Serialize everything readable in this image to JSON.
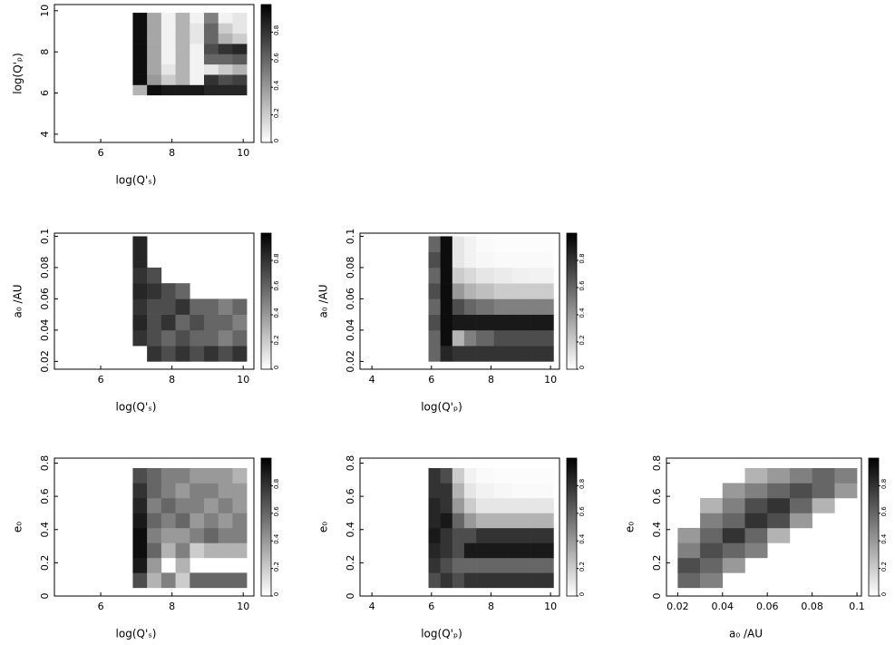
{
  "chart_data": [
    {
      "type": "heatmap",
      "xlabel": "log(Q'ₛ)",
      "ylabel": "log(Q'ₚ)",
      "xlim": [
        4.7,
        10.3
      ],
      "xticks": [
        6,
        8,
        10
      ],
      "ylim": [
        3.6,
        10.3
      ],
      "yticks": [
        4,
        6,
        8,
        10
      ],
      "xbins": [
        6.9,
        7.3,
        7.7,
        8.1,
        8.5,
        8.9,
        9.3,
        9.7,
        10.1
      ],
      "ybins": [
        5.9,
        6.4,
        6.9,
        7.4,
        7.9,
        8.4,
        8.9,
        9.4,
        9.9
      ],
      "z": [
        [
          0.3,
          0.95,
          0.9,
          0.9,
          0.9,
          0.85,
          0.85,
          0.85
        ],
        [
          0.95,
          0.4,
          0.2,
          0.3,
          0.05,
          0.8,
          0.7,
          0.75
        ],
        [
          0.95,
          0.35,
          0.1,
          0.3,
          0.05,
          0.1,
          0.2,
          0.3
        ],
        [
          0.95,
          0.35,
          0.05,
          0.3,
          0.05,
          0.6,
          0.6,
          0.65
        ],
        [
          0.95,
          0.35,
          0.05,
          0.3,
          0.05,
          0.7,
          0.8,
          0.85
        ],
        [
          0.95,
          0.35,
          0.05,
          0.3,
          0.1,
          0.6,
          0.3,
          0.2
        ],
        [
          0.95,
          0.35,
          0.05,
          0.3,
          0.1,
          0.6,
          0.2,
          0.1
        ],
        [
          0.95,
          0.35,
          0.05,
          0.3,
          0.05,
          0.5,
          0.05,
          0.1
        ]
      ],
      "colorbar": {
        "lim": [
          0,
          1
        ],
        "ticks": [
          0,
          0.2,
          0.4,
          0.6,
          0.8
        ]
      }
    },
    {
      "type": "heatmap",
      "xlabel": "log(Q'ₛ)",
      "ylabel": "a₀ /AU",
      "xlim": [
        4.7,
        10.3
      ],
      "xticks": [
        6,
        8,
        10
      ],
      "ylim": [
        0.015,
        0.102
      ],
      "yticks": [
        0.02,
        0.04,
        0.06,
        0.08,
        0.1
      ],
      "xbins": [
        6.9,
        7.3,
        7.7,
        8.1,
        8.5,
        8.9,
        9.3,
        9.7,
        10.1
      ],
      "ybins": [
        0.02,
        0.03,
        0.04,
        0.05,
        0.06,
        0.07,
        0.08,
        0.09,
        0.1
      ],
      "z": [
        [
          null,
          0.8,
          0.7,
          0.8,
          0.7,
          0.8,
          0.7,
          0.8
        ],
        [
          0.8,
          0.7,
          0.6,
          0.7,
          0.6,
          0.6,
          0.5,
          0.6
        ],
        [
          0.85,
          0.7,
          0.8,
          0.6,
          0.7,
          0.6,
          0.6,
          0.5
        ],
        [
          0.8,
          0.7,
          0.7,
          0.8,
          0.6,
          0.6,
          0.5,
          0.6
        ],
        [
          0.85,
          0.8,
          0.7,
          0.6,
          null,
          null,
          null,
          null
        ],
        [
          0.8,
          0.7,
          null,
          null,
          null,
          null,
          null,
          null
        ],
        [
          0.85,
          null,
          null,
          null,
          null,
          null,
          null,
          null
        ],
        [
          0.85,
          null,
          null,
          null,
          null,
          null,
          null,
          null
        ]
      ],
      "colorbar": {
        "lim": [
          0,
          1
        ],
        "ticks": [
          0,
          0.2,
          0.4,
          0.6,
          0.8
        ]
      }
    },
    {
      "type": "heatmap",
      "xlabel": "log(Q'ₚ)",
      "ylabel": "a₀ /AU",
      "xlim": [
        3.6,
        10.3
      ],
      "xticks": [
        4,
        6,
        8,
        10
      ],
      "ylim": [
        0.015,
        0.102
      ],
      "yticks": [
        0.02,
        0.04,
        0.06,
        0.08,
        0.1
      ],
      "xbins": [
        5.9,
        6.3,
        6.7,
        7.1,
        7.5,
        8.1,
        8.7,
        9.3,
        10.1
      ],
      "ybins": [
        0.02,
        0.03,
        0.04,
        0.05,
        0.06,
        0.07,
        0.08,
        0.09,
        0.1
      ],
      "z": [
        [
          0.6,
          0.85,
          0.8,
          0.8,
          0.8,
          0.8,
          0.8,
          0.8
        ],
        [
          0.6,
          0.95,
          0.3,
          0.5,
          0.6,
          0.7,
          0.7,
          0.7
        ],
        [
          0.7,
          0.95,
          0.9,
          0.9,
          0.9,
          0.9,
          0.9,
          0.9
        ],
        [
          0.6,
          0.95,
          0.7,
          0.6,
          0.55,
          0.5,
          0.5,
          0.5
        ],
        [
          0.7,
          0.95,
          0.4,
          0.3,
          0.25,
          0.2,
          0.2,
          0.2
        ],
        [
          0.6,
          0.95,
          0.2,
          0.15,
          0.1,
          0.08,
          0.06,
          0.05
        ],
        [
          0.7,
          0.95,
          0.1,
          0.05,
          0.03,
          0.02,
          0.02,
          0.02
        ],
        [
          0.6,
          0.95,
          0.1,
          0.05,
          0.02,
          0.01,
          0.01,
          0.01
        ]
      ],
      "colorbar": {
        "lim": [
          0,
          1
        ],
        "ticks": [
          0,
          0.2,
          0.4,
          0.6,
          0.8
        ]
      }
    },
    {
      "type": "heatmap",
      "xlabel": "log(Q'ₛ)",
      "ylabel": "e₀",
      "xlim": [
        4.7,
        10.3
      ],
      "xticks": [
        6,
        8,
        10
      ],
      "ylim": [
        0,
        0.83
      ],
      "yticks": [
        0,
        0.2,
        0.4,
        0.6,
        0.8
      ],
      "xbins": [
        6.9,
        7.3,
        7.7,
        8.1,
        8.5,
        8.9,
        9.3,
        9.7,
        10.1
      ],
      "ybins": [
        0.05,
        0.14,
        0.23,
        0.32,
        0.41,
        0.5,
        0.59,
        0.68,
        0.77
      ],
      "z": [
        [
          0.7,
          0.3,
          0.5,
          0.2,
          0.6,
          0.6,
          0.6,
          0.6
        ],
        [
          0.9,
          0.4,
          null,
          0.3,
          null,
          null,
          null,
          null
        ],
        [
          0.95,
          0.6,
          0.3,
          0.5,
          0.2,
          0.3,
          0.3,
          0.3
        ],
        [
          0.95,
          0.5,
          0.4,
          0.4,
          0.5,
          0.6,
          0.5,
          0.5
        ],
        [
          0.9,
          0.6,
          0.5,
          0.6,
          0.4,
          0.5,
          0.4,
          0.5
        ],
        [
          0.85,
          0.5,
          0.6,
          0.5,
          0.5,
          0.4,
          0.5,
          0.4
        ],
        [
          0.8,
          0.6,
          0.5,
          0.4,
          0.5,
          0.5,
          0.4,
          0.4
        ],
        [
          0.7,
          0.6,
          0.5,
          0.5,
          0.4,
          0.4,
          0.4,
          0.3
        ]
      ],
      "colorbar": {
        "lim": [
          0,
          1
        ],
        "ticks": [
          0,
          0.2,
          0.4,
          0.6,
          0.8
        ]
      }
    },
    {
      "type": "heatmap",
      "xlabel": "log(Q'ₚ)",
      "ylabel": "e₀",
      "xlim": [
        3.6,
        10.3
      ],
      "xticks": [
        4,
        6,
        8,
        10
      ],
      "ylim": [
        0,
        0.83
      ],
      "yticks": [
        0,
        0.2,
        0.4,
        0.6,
        0.8
      ],
      "xbins": [
        5.9,
        6.3,
        6.7,
        7.1,
        7.5,
        8.1,
        8.7,
        9.3,
        10.1
      ],
      "ybins": [
        0.05,
        0.14,
        0.23,
        0.32,
        0.41,
        0.5,
        0.59,
        0.68,
        0.77
      ],
      "z": [
        [
          0.7,
          0.8,
          0.7,
          0.8,
          0.8,
          0.8,
          0.8,
          0.8
        ],
        [
          0.8,
          0.7,
          0.6,
          0.6,
          0.6,
          0.6,
          0.6,
          0.6
        ],
        [
          0.85,
          0.8,
          0.7,
          0.9,
          0.9,
          0.9,
          0.9,
          0.9
        ],
        [
          0.9,
          0.8,
          0.7,
          0.7,
          0.8,
          0.8,
          0.8,
          0.8
        ],
        [
          0.85,
          0.9,
          0.6,
          0.4,
          0.3,
          0.3,
          0.3,
          0.3
        ],
        [
          0.85,
          0.8,
          0.4,
          0.2,
          0.1,
          0.1,
          0.1,
          0.1
        ],
        [
          0.8,
          0.8,
          0.3,
          0.1,
          0.05,
          0.03,
          0.02,
          0.02
        ],
        [
          0.8,
          0.7,
          0.2,
          0.05,
          0.02,
          0.01,
          0.01,
          0.01
        ]
      ],
      "colorbar": {
        "lim": [
          0,
          1
        ],
        "ticks": [
          0,
          0.2,
          0.4,
          0.6,
          0.8
        ]
      }
    },
    {
      "type": "heatmap",
      "xlabel": "a₀ /AU",
      "ylabel": "e₀",
      "xlim": [
        0.015,
        0.102
      ],
      "xticks": [
        0.02,
        0.04,
        0.06,
        0.08,
        0.1
      ],
      "ylim": [
        0,
        0.83
      ],
      "yticks": [
        0,
        0.2,
        0.4,
        0.6,
        0.8
      ],
      "xbins": [
        0.02,
        0.03,
        0.04,
        0.05,
        0.06,
        0.07,
        0.08,
        0.09,
        0.1
      ],
      "ybins": [
        0.05,
        0.14,
        0.23,
        0.32,
        0.41,
        0.5,
        0.59,
        0.68,
        0.77
      ],
      "z": [
        [
          0.6,
          0.5,
          null,
          null,
          null,
          null,
          null,
          null
        ],
        [
          0.7,
          0.6,
          0.4,
          null,
          null,
          null,
          null,
          null
        ],
        [
          0.5,
          0.7,
          0.6,
          0.5,
          null,
          null,
          null,
          null
        ],
        [
          0.4,
          0.6,
          0.8,
          0.6,
          0.3,
          null,
          null,
          null
        ],
        [
          null,
          0.5,
          0.6,
          0.8,
          0.7,
          0.4,
          null,
          null
        ],
        [
          null,
          0.3,
          0.5,
          0.7,
          0.8,
          0.6,
          0.3,
          null
        ],
        [
          null,
          null,
          0.4,
          0.5,
          0.6,
          0.7,
          0.6,
          0.4
        ],
        [
          null,
          null,
          null,
          0.3,
          0.4,
          0.5,
          0.6,
          0.5
        ]
      ],
      "colorbar": {
        "lim": [
          0,
          1
        ],
        "ticks": [
          0,
          0.2,
          0.4,
          0.6,
          0.8
        ]
      }
    }
  ]
}
